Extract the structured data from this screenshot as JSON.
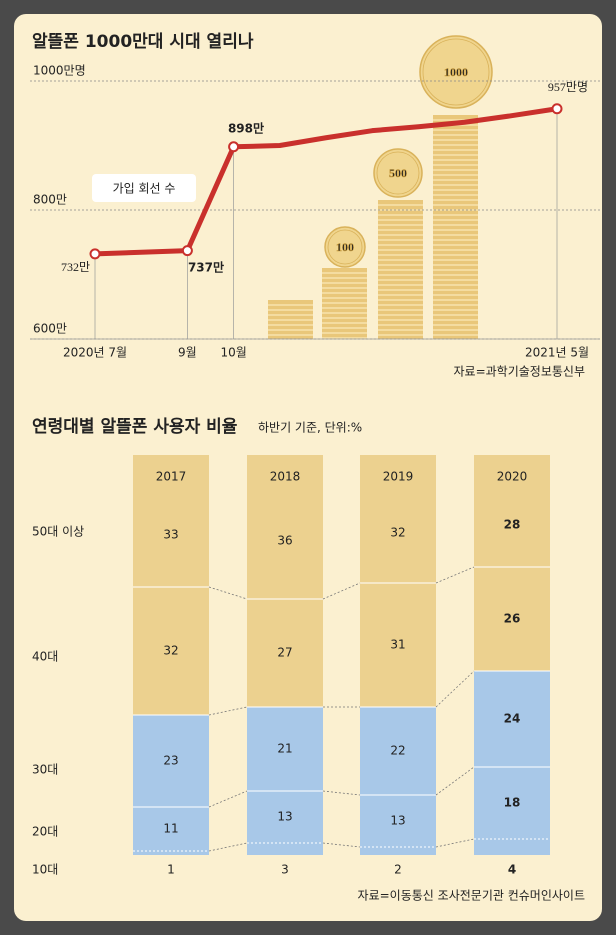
{
  "chart_data": [
    {
      "type": "line",
      "title": "알뜰폰 1000만대 시대 열리나",
      "categories": [
        "2020년 7월",
        null,
        "9월",
        "10월",
        null,
        null,
        null,
        null,
        null,
        null,
        "2021년 5월"
      ],
      "series": [
        {
          "name": "가입 회선 수",
          "color": "#c9302c",
          "values": [
            732,
            734.5,
            737,
            898,
            900,
            912,
            923,
            929,
            936,
            946,
            957
          ],
          "value_labels": [
            "732만",
            null,
            "737만",
            "898만",
            null,
            null,
            null,
            null,
            null,
            null,
            "957만명"
          ]
        }
      ],
      "ylim": [
        600,
        1000
      ],
      "yticks": [
        {
          "value": 1000,
          "label": "1000만명"
        },
        {
          "value": 800,
          "label": "800만"
        },
        {
          "value": 600,
          "label": "600만"
        }
      ],
      "coin_labels": [
        "100",
        "500",
        "1000"
      ],
      "source": "자료=과학기술정보통신부"
    },
    {
      "type": "stacked_bar",
      "title": "연령대별 알뜰폰 사용자 비율",
      "subtitle": "하반기 기준, 단위:%",
      "categories": [
        "2017",
        "2018",
        "2019",
        "2020"
      ],
      "series": [
        {
          "name": "10대",
          "color": "#a8c8e8",
          "values": [
            1,
            3,
            2,
            4
          ]
        },
        {
          "name": "20대",
          "color": "#a8c8e8",
          "values": [
            11,
            13,
            13,
            18
          ]
        },
        {
          "name": "30대",
          "color": "#a8c8e8",
          "values": [
            23,
            21,
            22,
            24
          ]
        },
        {
          "name": "40대",
          "color": "#ecd18f",
          "values": [
            32,
            27,
            31,
            26
          ]
        },
        {
          "name": "50대 이상",
          "color": "#ecd18f",
          "values": [
            33,
            36,
            32,
            28
          ]
        }
      ],
      "ylim": [
        0,
        100
      ],
      "source": "자료=이동통신 조사전문기관 컨슈머인사이트"
    }
  ]
}
